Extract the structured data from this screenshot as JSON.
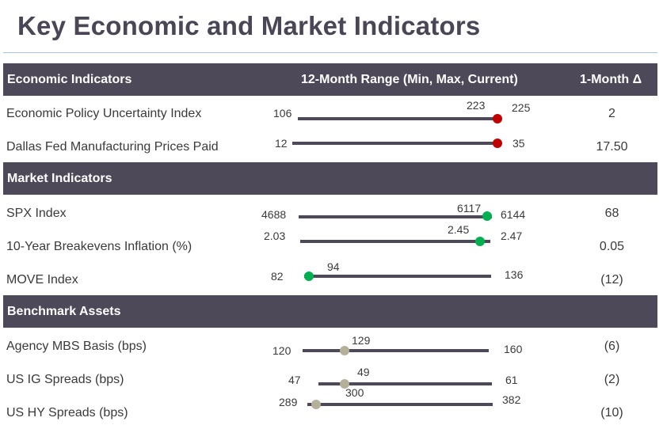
{
  "title": "Key Economic and Market Indicators",
  "colors": {
    "header_bg": "#4d4959",
    "bar": "#4d4959",
    "red_dot": "#c00000",
    "green_dot": "#00b050",
    "gray_dot": "#b5b09a",
    "rule": "#a9c1dc"
  },
  "sections": [
    {
      "header": "Economic Indicators",
      "range_header": "12-Month Range (Min, Max, Current)",
      "delta_header": "1-Month Δ",
      "rows": [
        {
          "label": "Economic Policy Uncertainty Index",
          "min": "106",
          "max": "225",
          "current": "223",
          "delta": "2",
          "dot": "red_dot"
        },
        {
          "label": "Dallas Fed Manufacturing Prices Paid",
          "min": "12",
          "max": "35",
          "current": "",
          "delta": "17.50",
          "dot": "red_dot"
        }
      ]
    },
    {
      "header": "Market Indicators",
      "rows": [
        {
          "label": "SPX Index",
          "min": "4688",
          "max": "6144",
          "current": "6117",
          "delta": "68",
          "dot": "green_dot"
        },
        {
          "label": "10-Year Breakevens Inflation (%)",
          "min": "2.03",
          "max": "2.47",
          "current": "2.45",
          "delta": "0.05",
          "dot": "green_dot"
        },
        {
          "label": "MOVE Index",
          "min": "82",
          "max": "136",
          "current": "94",
          "delta": "(12)",
          "dot": "green_dot"
        }
      ]
    },
    {
      "header": "Benchmark Assets",
      "rows": [
        {
          "label": "Agency MBS Basis (bps)",
          "min": "120",
          "max": "160",
          "current": "129",
          "delta": "(6)",
          "dot": "gray_dot"
        },
        {
          "label": "US IG Spreads (bps)",
          "min": "47",
          "max": "61",
          "current": "49",
          "delta": "(2)",
          "dot": "gray_dot"
        },
        {
          "label": "US HY Spreads (bps)",
          "min": "289",
          "max": "382",
          "current": "300",
          "delta": "(10)",
          "dot": "gray_dot"
        }
      ]
    }
  ]
}
